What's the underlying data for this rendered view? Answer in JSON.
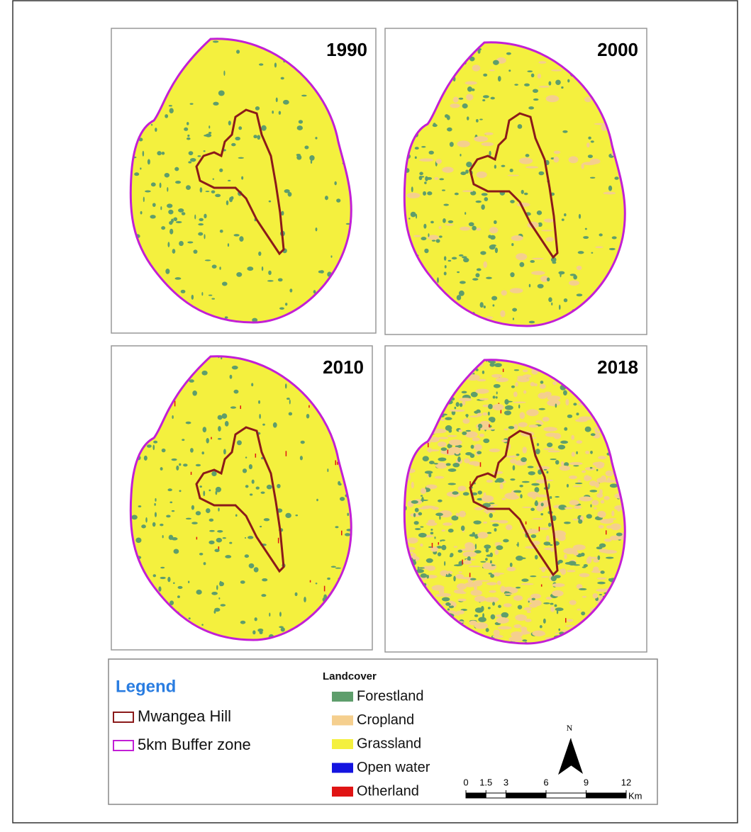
{
  "panels": [
    {
      "year": "1990"
    },
    {
      "year": "2000"
    },
    {
      "year": "2010"
    },
    {
      "year": "2018"
    }
  ],
  "legend": {
    "title": "Legend",
    "items": [
      {
        "label": "Mwangea Hill",
        "color": "#8b1a1a"
      },
      {
        "label": "5km Buffer zone",
        "color": "#c21fd6"
      }
    ]
  },
  "landcover": {
    "title": "Landcover",
    "classes": [
      {
        "label": "Forestland",
        "color": "#5e9e6c"
      },
      {
        "label": "Cropland",
        "color": "#f5cf8e"
      },
      {
        "label": "Grassland",
        "color": "#f4f03e"
      },
      {
        "label": "Open water",
        "color": "#1414e0"
      },
      {
        "label": "Otherland",
        "color": "#e01414"
      }
    ]
  },
  "north": "N",
  "scale_bar": {
    "ticks": [
      0,
      1.5,
      3,
      6,
      9,
      12
    ],
    "unit": "Km"
  }
}
